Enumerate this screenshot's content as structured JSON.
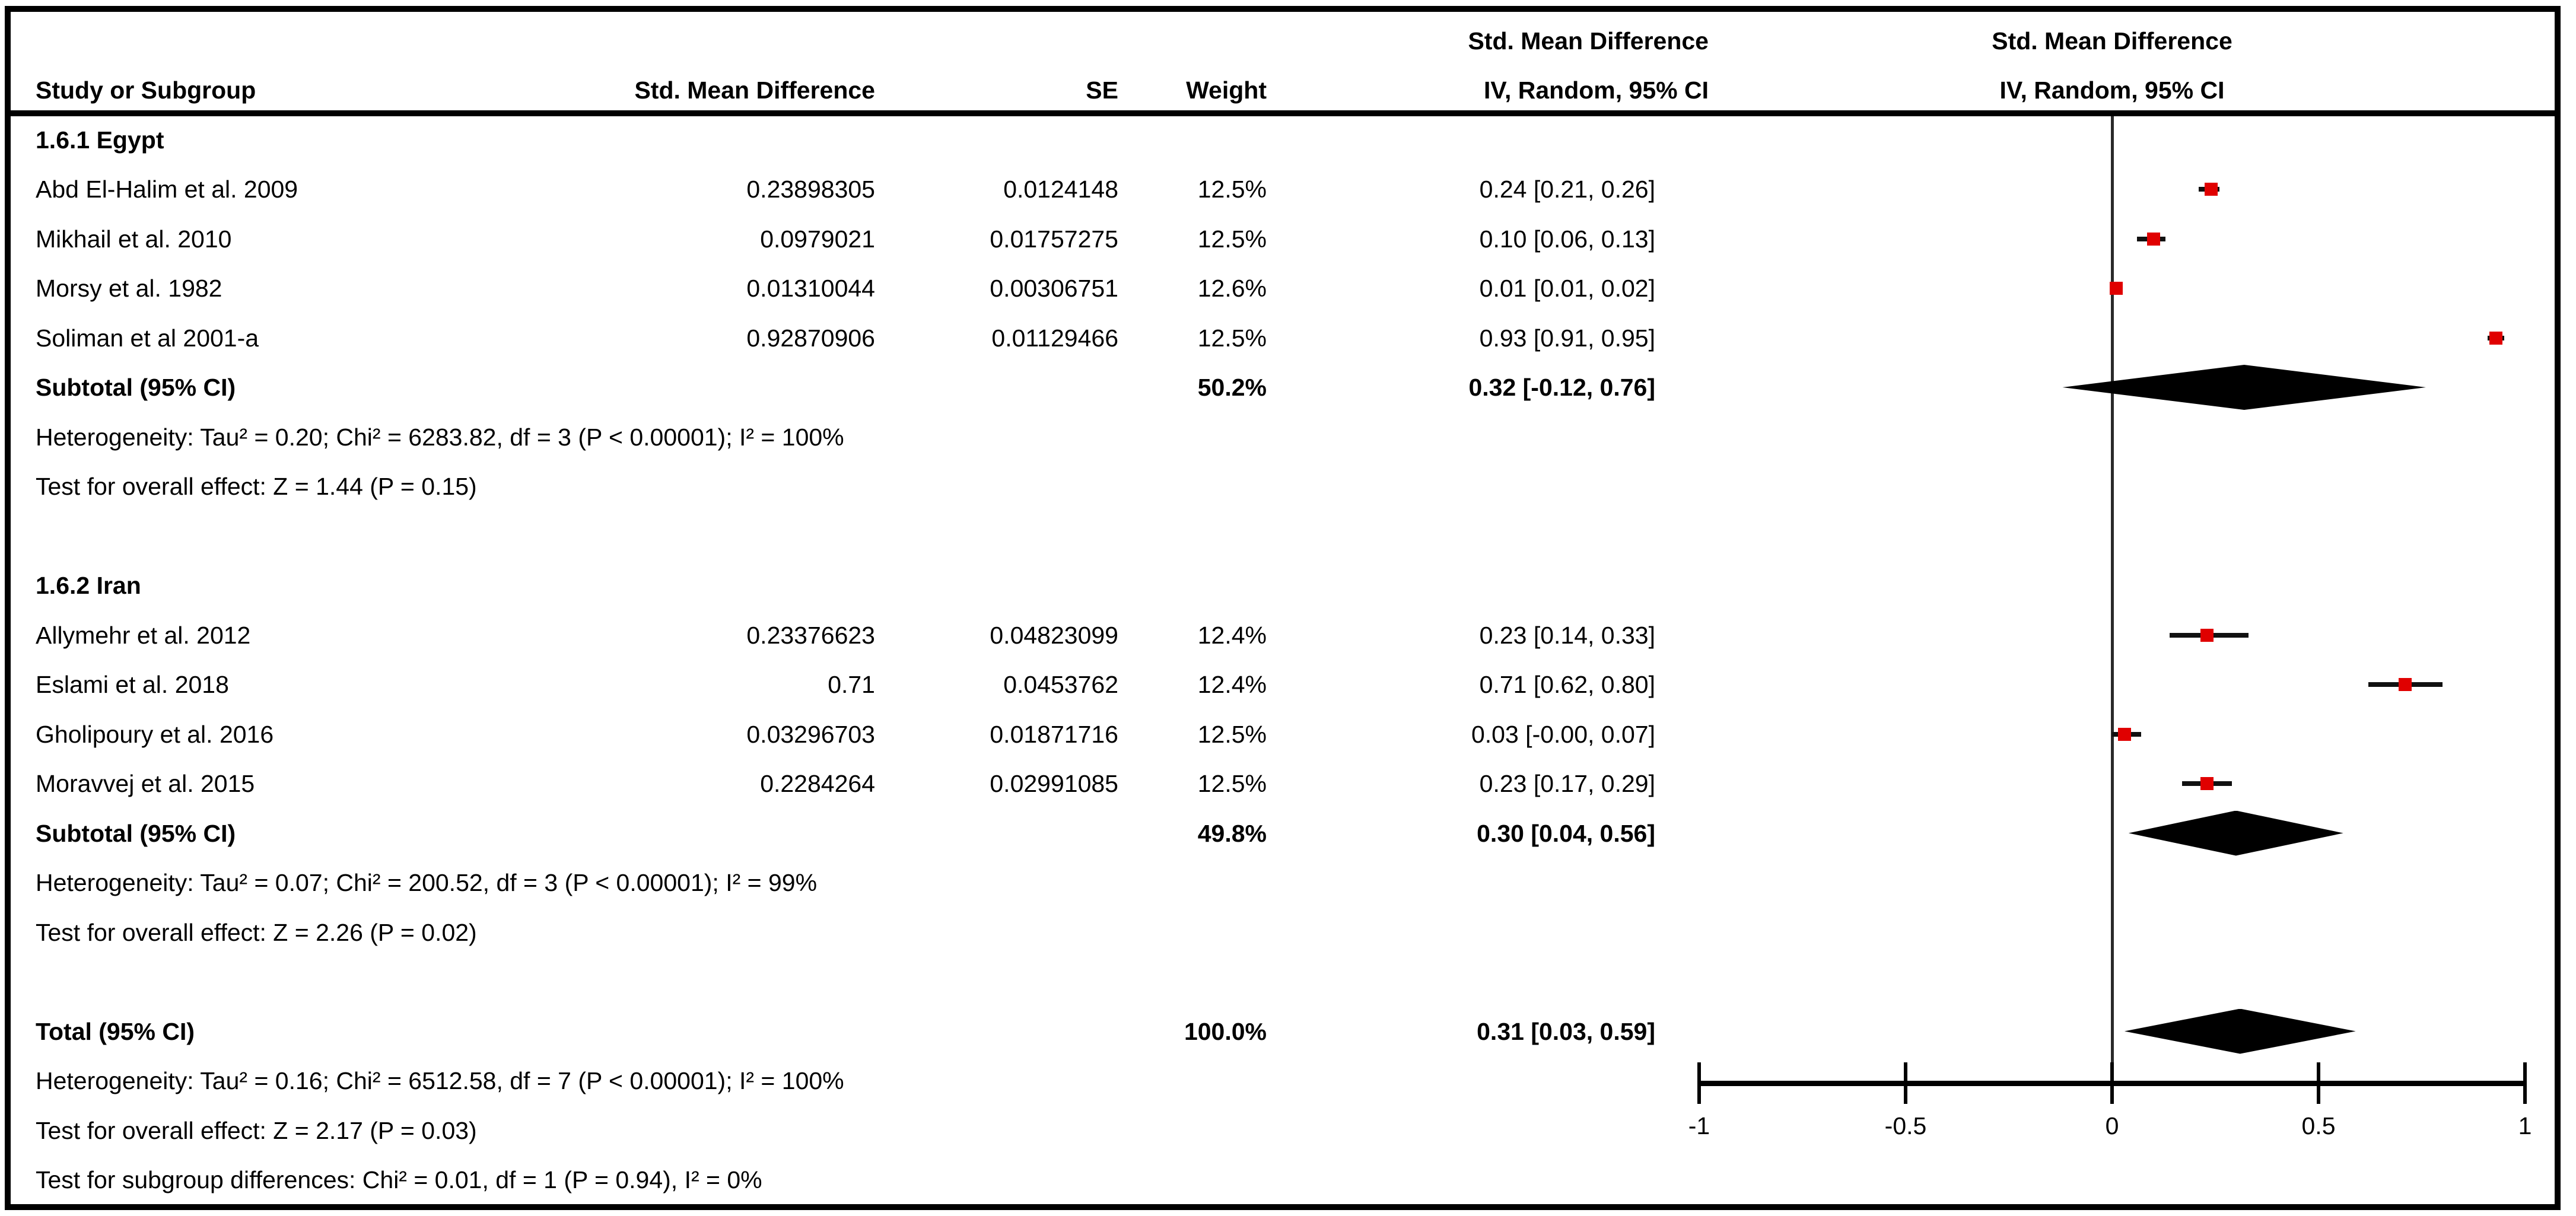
{
  "header": {
    "study_label": "Study or Subgroup",
    "effect_measure": "Std. Mean Difference",
    "se_label": "SE",
    "weight_label": "Weight",
    "model_label": "IV, Random, 95% CI"
  },
  "colors": {
    "marker_red": "#e00000",
    "whisker_black": "#111111",
    "diamond_black": "#000000",
    "text_black": "#000000",
    "border_black": "#000000"
  },
  "axis": {
    "min": -1,
    "max": 1,
    "ticks": [
      {
        "value": -1,
        "label": "-1"
      },
      {
        "value": -0.5,
        "label": "-0.5"
      },
      {
        "value": 0,
        "label": "0"
      },
      {
        "value": 0.5,
        "label": "0.5"
      },
      {
        "value": 1,
        "label": "1"
      }
    ]
  },
  "chart_data": {
    "type": "forest",
    "effect_measure": "Std. Mean Difference",
    "model": "IV, Random, 95% CI",
    "xlim": [
      -1,
      1
    ],
    "x_tick_labels": [
      "-1",
      "-0.5",
      "0",
      "0.5",
      "1"
    ],
    "groups": [
      {
        "label": "1.6.1 Egypt",
        "studies": [
          {
            "name": "Abd El-Halim et al. 2009",
            "smd": "0.23898305",
            "se": "0.0124148",
            "weight": "12.5%",
            "ci_text": "0.24 [0.21, 0.26]",
            "est": 0.24,
            "lo": 0.21,
            "hi": 0.26
          },
          {
            "name": "Mikhail et al. 2010",
            "smd": "0.0979021",
            "se": "0.01757275",
            "weight": "12.5%",
            "ci_text": "0.10 [0.06, 0.13]",
            "est": 0.1,
            "lo": 0.06,
            "hi": 0.13
          },
          {
            "name": "Morsy et al. 1982",
            "smd": "0.01310044",
            "se": "0.00306751",
            "weight": "12.6%",
            "ci_text": "0.01 [0.01, 0.02]",
            "est": 0.01,
            "lo": 0.01,
            "hi": 0.02
          },
          {
            "name": "Soliman et al 2001-a",
            "smd": "0.92870906",
            "se": "0.01129466",
            "weight": "12.5%",
            "ci_text": "0.93 [0.91, 0.95]",
            "est": 0.93,
            "lo": 0.91,
            "hi": 0.95
          }
        ],
        "subtotal": {
          "label": "Subtotal (95% CI)",
          "weight": "50.2%",
          "ci_text": "0.32 [-0.12, 0.76]",
          "est": 0.32,
          "lo": -0.12,
          "hi": 0.76
        },
        "heterogeneity": "Heterogeneity: Tau² = 0.20; Chi² = 6283.82, df = 3 (P < 0.00001); I² = 100%",
        "overall_effect": "Test for overall effect: Z = 1.44 (P = 0.15)"
      },
      {
        "label": "1.6.2 Iran",
        "studies": [
          {
            "name": "Allymehr et al. 2012",
            "smd": "0.23376623",
            "se": "0.04823099",
            "weight": "12.4%",
            "ci_text": "0.23 [0.14, 0.33]",
            "est": 0.23,
            "lo": 0.14,
            "hi": 0.33
          },
          {
            "name": "Eslami et al. 2018",
            "smd": "0.71",
            "se": "0.0453762",
            "weight": "12.4%",
            "ci_text": "0.71 [0.62, 0.80]",
            "est": 0.71,
            "lo": 0.62,
            "hi": 0.8
          },
          {
            "name": "Gholipoury et al. 2016",
            "smd": "0.03296703",
            "se": "0.01871716",
            "weight": "12.5%",
            "ci_text": "0.03 [-0.00, 0.07]",
            "est": 0.03,
            "lo": 0.0,
            "hi": 0.07
          },
          {
            "name": "Moravvej et al. 2015",
            "smd": "0.2284264",
            "se": "0.02991085",
            "weight": "12.5%",
            "ci_text": "0.23 [0.17, 0.29]",
            "est": 0.23,
            "lo": 0.17,
            "hi": 0.29
          }
        ],
        "subtotal": {
          "label": "Subtotal (95% CI)",
          "weight": "49.8%",
          "ci_text": "0.30 [0.04, 0.56]",
          "est": 0.3,
          "lo": 0.04,
          "hi": 0.56
        },
        "heterogeneity": "Heterogeneity: Tau² = 0.07; Chi² = 200.52, df = 3 (P < 0.00001); I² = 99%",
        "overall_effect": "Test for overall effect: Z = 2.26 (P = 0.02)"
      }
    ],
    "total": {
      "label": "Total (95% CI)",
      "weight": "100.0%",
      "ci_text": "0.31 [0.03, 0.59]",
      "est": 0.31,
      "lo": 0.03,
      "hi": 0.59,
      "heterogeneity": "Heterogeneity: Tau² = 0.16; Chi² = 6512.58, df = 7 (P < 0.00001); I² = 100%",
      "overall_effect": "Test for overall effect: Z = 2.17 (P = 0.03)",
      "subgroup_differences": "Test for subgroup differences: Chi² = 0.01, df = 1 (P = 0.94), I² = 0%"
    }
  }
}
